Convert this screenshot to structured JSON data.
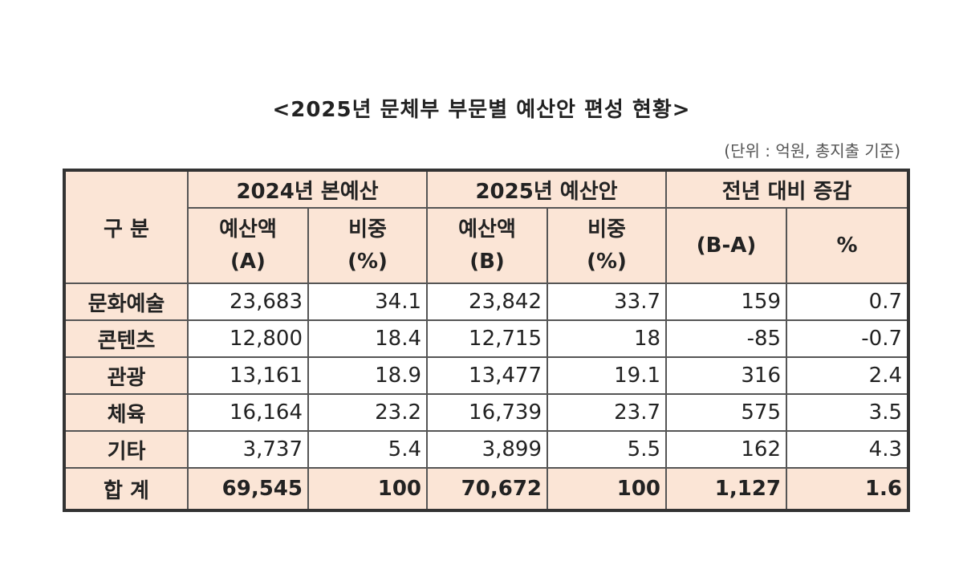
{
  "header": {
    "title": "<2025년 문체부 부문별 예산안 편성 현황>",
    "unit": "(단위 : 억원, 총지출 기준)"
  },
  "table": {
    "corner": "구 분",
    "groups": [
      "2024년 본예산",
      "2025년 예산안",
      "전년 대비 증감"
    ],
    "subheaders": [
      [
        "예산액",
        "(A)"
      ],
      [
        "비중",
        "(%)"
      ],
      [
        "예산액",
        "(B)"
      ],
      [
        "비중",
        "(%)"
      ],
      [
        "(B-A)"
      ],
      [
        "%"
      ]
    ],
    "rows": [
      [
        "문화예술",
        "23,683",
        "34.1",
        "23,842",
        "33.7",
        "159",
        "0.7"
      ],
      [
        "콘텐츠",
        "12,800",
        "18.4",
        "12,715",
        "18",
        "-85",
        "-0.7"
      ],
      [
        "관광",
        "13,161",
        "18.9",
        "13,477",
        "19.1",
        "316",
        "2.4"
      ],
      [
        "체육",
        "16,164",
        "23.2",
        "16,739",
        "23.7",
        "575",
        "3.5"
      ],
      [
        "기타",
        "3,737",
        "5.4",
        "3,899",
        "5.5",
        "162",
        "4.3"
      ]
    ],
    "total": [
      "합 계",
      "69,545",
      "100",
      "70,672",
      "100",
      "1,127",
      "1.6"
    ]
  }
}
